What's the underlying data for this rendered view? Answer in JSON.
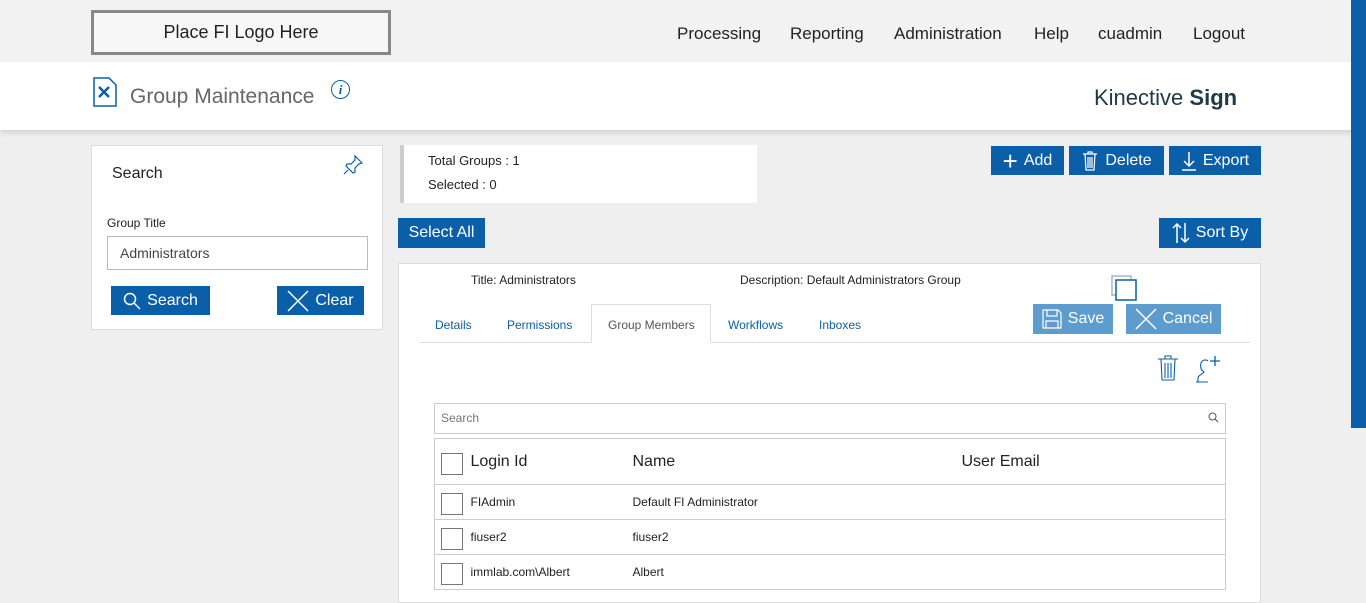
{
  "header": {
    "logo": "Place FI Logo Here",
    "nav": [
      "Processing",
      "Reporting",
      "Administration",
      "Help",
      "cuadmin",
      "Logout"
    ]
  },
  "page": {
    "title": "Group Maintenance",
    "brand_a": "Kinective",
    "brand_b": "Sign"
  },
  "search": {
    "title": "Search",
    "field_label": "Group Title",
    "field_value": "Administrators",
    "search_btn": "Search",
    "clear_btn": "Clear"
  },
  "stats": {
    "total": "Total Groups : 1",
    "selected": "Selected : 0"
  },
  "toolbar": {
    "add": "Add",
    "delete": "Delete",
    "export": "Export",
    "select_all": "Select All",
    "sort_by": "Sort By"
  },
  "detail": {
    "title_label": "Title:",
    "title_value": "Administrators",
    "desc_label": "Description:",
    "desc_value": "Default Administrators Group",
    "save": "Save",
    "cancel": "Cancel",
    "tabs": [
      "Details",
      "Permissions",
      "Group Members",
      "Workflows",
      "Inboxes"
    ],
    "active_tab": "Group Members",
    "member_search_placeholder": "Search",
    "columns": [
      "Login Id",
      "Name",
      "User Email"
    ],
    "rows": [
      {
        "login": "FIAdmin",
        "name": "Default FI Administrator",
        "email": ""
      },
      {
        "login": "fiuser2",
        "name": "fiuser2",
        "email": ""
      },
      {
        "login": "immlab.com\\Albert",
        "name": "Albert",
        "email": ""
      }
    ]
  },
  "colors": {
    "primary": "#0a5fa8",
    "disabled": "#5d9ccc"
  }
}
